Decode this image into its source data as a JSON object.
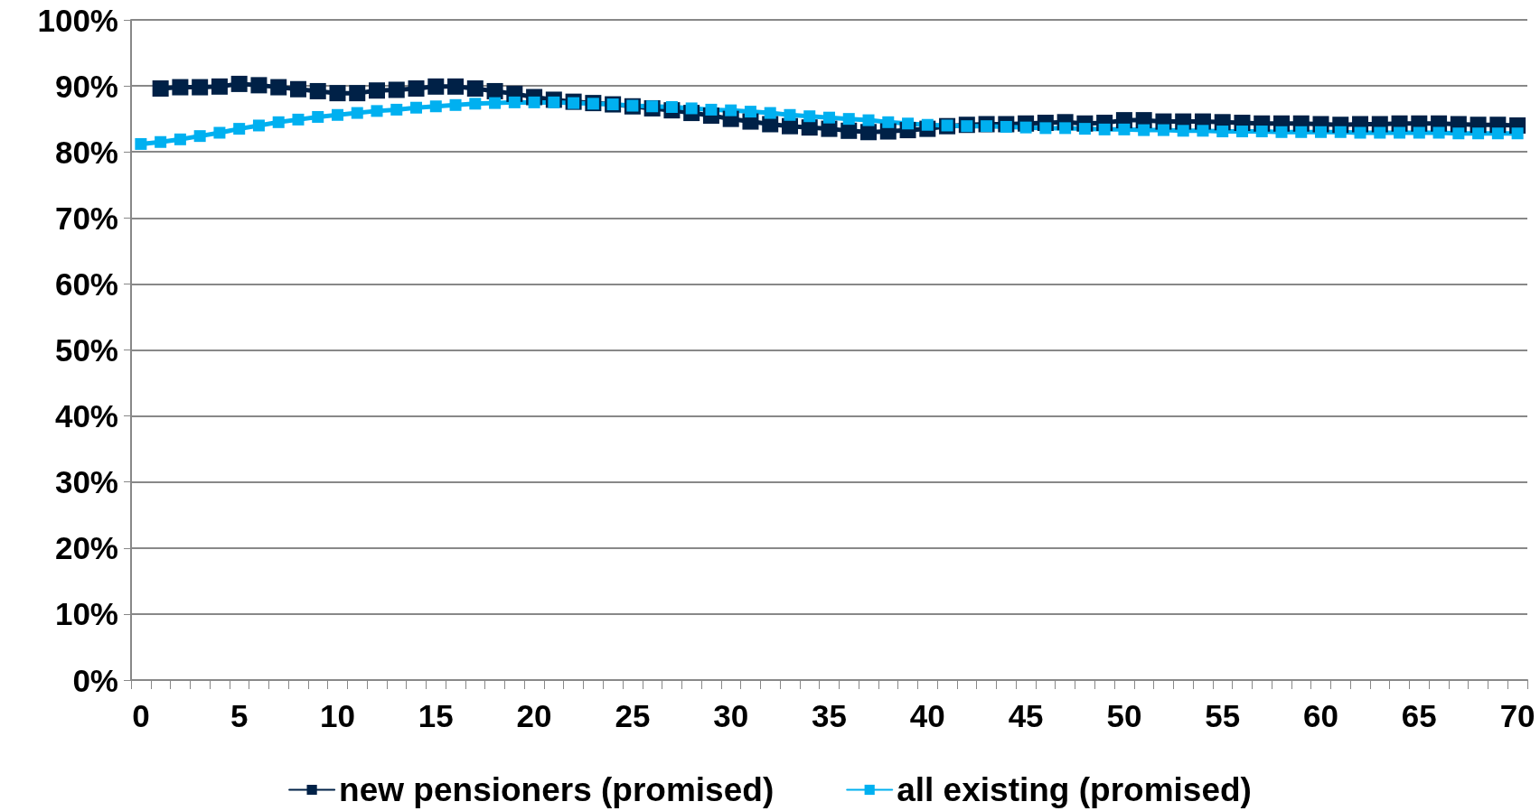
{
  "chart_data": {
    "type": "line",
    "categories": [
      "0",
      null,
      null,
      null,
      null,
      "5",
      null,
      null,
      null,
      null,
      "10",
      null,
      null,
      null,
      null,
      "15",
      null,
      null,
      null,
      null,
      "20",
      null,
      null,
      null,
      null,
      "25",
      null,
      null,
      null,
      null,
      "30",
      null,
      null,
      null,
      null,
      "35",
      null,
      null,
      null,
      null,
      "40",
      null,
      null,
      null,
      null,
      "45",
      null,
      null,
      null,
      null,
      "50",
      null,
      null,
      null,
      null,
      "55",
      null,
      null,
      null,
      null,
      "60",
      null,
      null,
      null,
      null,
      "65",
      null,
      null,
      null,
      null,
      "70"
    ],
    "series": [
      {
        "name": "new pensioners (promised)",
        "color": "#002147",
        "values": [
          null,
          89.6,
          89.8,
          89.8,
          89.9,
          90.3,
          90.1,
          89.8,
          89.5,
          89.2,
          88.9,
          88.9,
          89.3,
          89.4,
          89.6,
          89.9,
          89.9,
          89.6,
          89.2,
          88.8,
          88.3,
          87.9,
          87.6,
          87.4,
          87.2,
          86.9,
          86.6,
          86.3,
          85.9,
          85.5,
          85.0,
          84.6,
          84.2,
          83.9,
          83.7,
          83.5,
          83.2,
          83.0,
          83.1,
          83.3,
          83.5,
          83.9,
          84.1,
          84.2,
          84.2,
          84.3,
          84.4,
          84.5,
          84.3,
          84.4,
          84.8,
          84.8,
          84.6,
          84.6,
          84.6,
          84.5,
          84.4,
          84.3,
          84.3,
          84.3,
          84.2,
          84.1,
          84.2,
          84.2,
          84.3,
          84.3,
          84.3,
          84.2,
          84.1,
          84.1,
          84.0
        ]
      },
      {
        "name": "all existing (promised)",
        "color": "#00b0f0",
        "values": [
          81.2,
          81.5,
          81.9,
          82.4,
          82.9,
          83.5,
          84.0,
          84.5,
          84.9,
          85.3,
          85.6,
          85.9,
          86.2,
          86.4,
          86.7,
          86.9,
          87.1,
          87.3,
          87.4,
          87.5,
          87.5,
          87.5,
          87.4,
          87.3,
          87.2,
          87.0,
          86.9,
          86.8,
          86.6,
          86.4,
          86.3,
          86.1,
          85.9,
          85.6,
          85.4,
          85.2,
          85.0,
          84.8,
          84.5,
          84.3,
          84.1,
          84.0,
          83.9,
          83.9,
          83.8,
          83.7,
          83.6,
          83.6,
          83.5,
          83.4,
          83.4,
          83.3,
          83.3,
          83.2,
          83.2,
          83.1,
          83.1,
          83.1,
          83.0,
          83.0,
          83.0,
          83.0,
          82.9,
          82.9,
          82.9,
          82.9,
          82.9,
          82.8,
          82.8,
          82.8,
          82.8
        ]
      }
    ],
    "ylim": [
      0,
      100
    ],
    "yticks": [
      {
        "value": 0,
        "label": "0%"
      },
      {
        "value": 10,
        "label": "10%"
      },
      {
        "value": 20,
        "label": "20%"
      },
      {
        "value": 30,
        "label": "30%"
      },
      {
        "value": 40,
        "label": "40%"
      },
      {
        "value": 50,
        "label": "50%"
      },
      {
        "value": 60,
        "label": "60%"
      },
      {
        "value": 70,
        "label": "70%"
      },
      {
        "value": 80,
        "label": "80%"
      },
      {
        "value": 90,
        "label": "90%"
      },
      {
        "value": 100,
        "label": "100%"
      }
    ],
    "grid": "y",
    "legend": "bottom",
    "marker": "square",
    "line_style": "solid"
  }
}
